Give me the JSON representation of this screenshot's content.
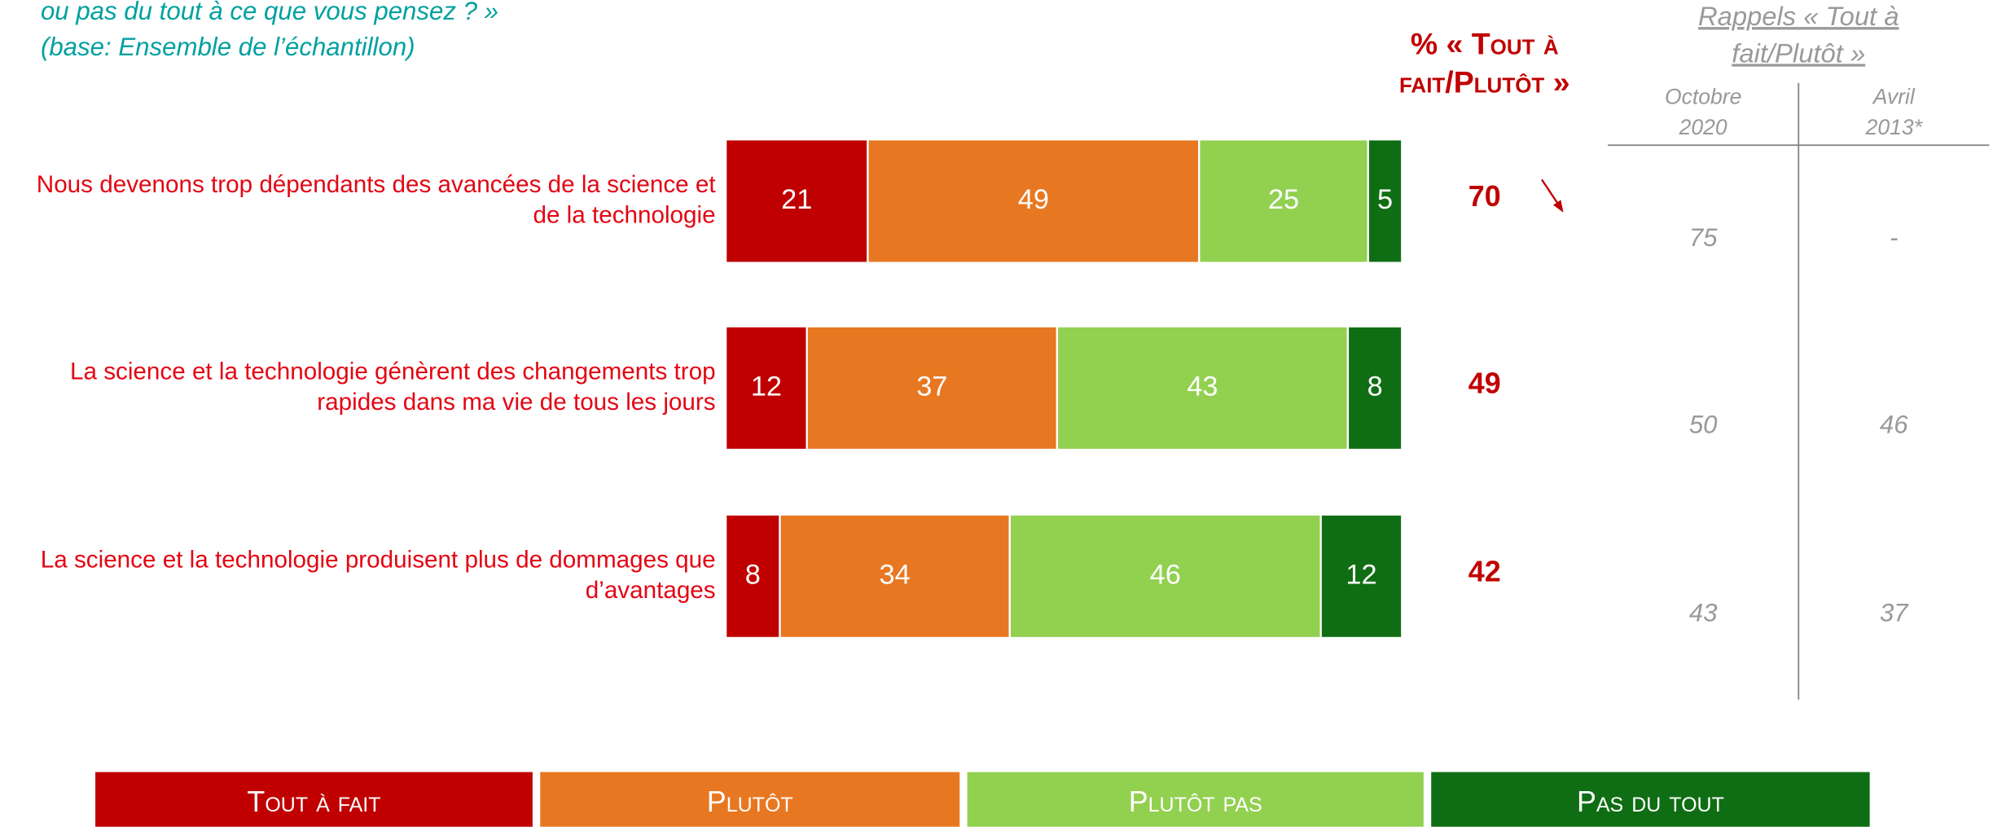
{
  "chart_data": {
    "type": "stacked-bar",
    "subtitle": [
      "ou pas du tout à ce que vous pensez ? »",
      "(base: Ensemble de l’échantillon)"
    ],
    "categories": [
      "Nous devenons trop dépendants des avancées de la science et de la technologie",
      "La science et la technologie génèrent des changements trop rapides dans ma vie de tous les jours",
      "La science et la technologie produisent plus de dommages que d’avantages"
    ],
    "xlim": [
      0,
      100
    ],
    "series": [
      {
        "name": "Tout à fait",
        "color": "#c00000",
        "values": [
          21,
          12,
          8
        ]
      },
      {
        "name": "Plutôt",
        "color": "#e87722",
        "values": [
          49,
          37,
          34
        ]
      },
      {
        "name": "Plutôt pas",
        "color": "#92d050",
        "values": [
          25,
          43,
          46
        ]
      },
      {
        "name": "Pas du tout",
        "color": "#0f6e13",
        "values": [
          5,
          8,
          12
        ]
      }
    ],
    "totals": {
      "title": "% « Tout à fait/Plutôt »",
      "color": "#c00000",
      "values": [
        70,
        49,
        42
      ]
    },
    "recall": {
      "title": "Rappels « Tout à fait/Plutôt »",
      "columns": [
        {
          "name": "Octobre 2020",
          "values": [
            75,
            50,
            43
          ]
        },
        {
          "name": "Avril 2013*",
          "values": [
            null,
            46,
            37
          ],
          "value_labels": [
            "-",
            "46",
            "37"
          ]
        }
      ]
    }
  }
}
